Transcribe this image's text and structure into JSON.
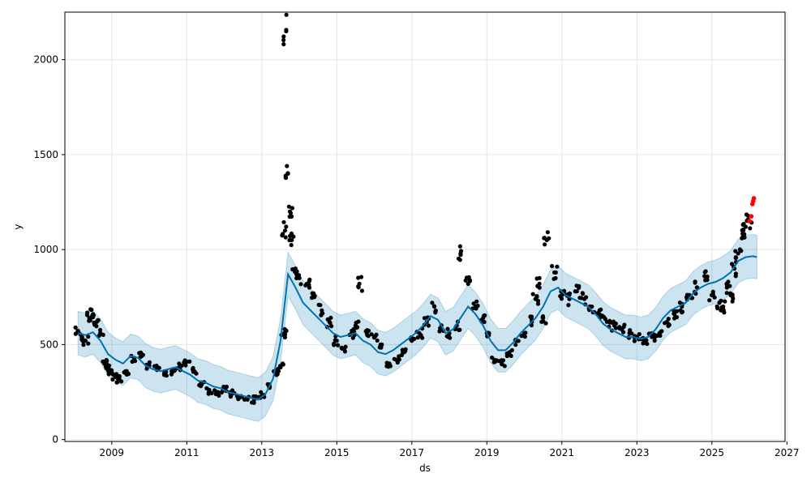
{
  "chart_data": {
    "type": "line",
    "xlabel": "ds",
    "ylabel": "y",
    "xlim": [
      2007.75,
      2026.95
    ],
    "ylim": [
      -10,
      2250
    ],
    "x_ticks": [
      2009,
      2011,
      2013,
      2015,
      2017,
      2019,
      2021,
      2023,
      2025,
      2027
    ],
    "y_ticks": [
      0,
      500,
      1000,
      1500,
      2000
    ],
    "grid": true,
    "colors": {
      "forecast": "#0072B2",
      "band": "#0072B2",
      "observed": "#000000",
      "recent": "#ff0000"
    },
    "series": [
      {
        "kind": "forecast",
        "x": [
          2008.1,
          2008.3,
          2008.5,
          2008.7,
          2008.9,
          2009.1,
          2009.3,
          2009.5,
          2009.7,
          2009.9,
          2010.1,
          2010.3,
          2010.5,
          2010.7,
          2010.9,
          2011.1,
          2011.3,
          2011.5,
          2011.7,
          2011.9,
          2012.1,
          2012.3,
          2012.5,
          2012.7,
          2012.9,
          2013.1,
          2013.3,
          2013.5,
          2013.7,
          2013.9,
          2014.1,
          2014.3,
          2014.5,
          2014.7,
          2014.9,
          2015.1,
          2015.3,
          2015.5,
          2015.7,
          2015.9,
          2016.1,
          2016.3,
          2016.5,
          2016.7,
          2016.9,
          2017.1,
          2017.3,
          2017.5,
          2017.7,
          2017.9,
          2018.1,
          2018.3,
          2018.5,
          2018.7,
          2018.9,
          2019.1,
          2019.3,
          2019.5,
          2019.7,
          2019.9,
          2020.1,
          2020.3,
          2020.5,
          2020.7,
          2020.9,
          2021.1,
          2021.3,
          2021.5,
          2021.7,
          2021.9,
          2022.1,
          2022.3,
          2022.5,
          2022.7,
          2022.9,
          2023.1,
          2023.3,
          2023.5,
          2023.7,
          2023.9,
          2024.1,
          2024.3,
          2024.5,
          2024.7,
          2024.9,
          2025.1,
          2025.3,
          2025.5,
          2025.7,
          2025.9,
          2026.1,
          2026.2
        ],
        "y": [
          560,
          550,
          565,
          520,
          450,
          420,
          400,
          440,
          430,
          390,
          370,
          360,
          370,
          380,
          360,
          340,
          310,
          300,
          280,
          270,
          250,
          240,
          230,
          220,
          210,
          240,
          320,
          520,
          870,
          800,
          720,
          680,
          640,
          600,
          560,
          540,
          550,
          560,
          520,
          500,
          460,
          450,
          470,
          500,
          530,
          560,
          600,
          650,
          630,
          560,
          580,
          640,
          700,
          660,
          600,
          520,
          470,
          470,
          510,
          560,
          600,
          640,
          700,
          780,
          800,
          760,
          740,
          720,
          700,
          660,
          610,
          580,
          560,
          540,
          540,
          530,
          540,
          580,
          640,
          680,
          700,
          720,
          770,
          800,
          820,
          830,
          850,
          880,
          940,
          960,
          965,
          960
        ]
      },
      {
        "kind": "observed",
        "x": [
          2008.1,
          2008.2,
          2008.3,
          2008.4,
          2008.5,
          2008.6,
          2008.7,
          2008.8,
          2008.9,
          2009.0,
          2009.1,
          2009.2,
          2009.4,
          2009.6,
          2009.8,
          2010.0,
          2010.2,
          2010.4,
          2010.6,
          2010.8,
          2011.0,
          2011.2,
          2011.4,
          2011.6,
          2011.8,
          2012.0,
          2012.2,
          2012.4,
          2012.6,
          2012.8,
          2013.0,
          2013.2,
          2013.4,
          2013.5,
          2013.6,
          2013.62,
          2013.65,
          2013.7,
          2013.75,
          2013.8,
          2013.9,
          2014.0,
          2014.2,
          2014.4,
          2014.6,
          2014.8,
          2015.0,
          2015.2,
          2015.4,
          2015.5,
          2015.6,
          2015.8,
          2016.0,
          2016.2,
          2016.4,
          2016.6,
          2016.8,
          2017.0,
          2017.2,
          2017.4,
          2017.6,
          2017.8,
          2018.0,
          2018.2,
          2018.3,
          2018.5,
          2018.7,
          2018.9,
          2019.0,
          2019.2,
          2019.4,
          2019.6,
          2019.8,
          2020.0,
          2020.2,
          2020.3,
          2020.4,
          2020.5,
          2020.6,
          2020.8,
          2021.0,
          2021.2,
          2021.4,
          2021.6,
          2021.8,
          2022.0,
          2022.2,
          2022.4,
          2022.6,
          2022.8,
          2023.0,
          2023.2,
          2023.4,
          2023.6,
          2023.8,
          2024.0,
          2024.2,
          2024.4,
          2024.6,
          2024.8,
          2025.0,
          2025.2,
          2025.3,
          2025.4,
          2025.5,
          2025.6,
          2025.7,
          2025.8,
          2025.9,
          2026.0
        ],
        "y": [
          570,
          540,
          520,
          640,
          660,
          620,
          560,
          400,
          380,
          350,
          330,
          320,
          360,
          430,
          440,
          390,
          370,
          340,
          360,
          380,
          410,
          360,
          300,
          260,
          250,
          260,
          240,
          220,
          215,
          210,
          230,
          290,
          360,
          380,
          560,
          1100,
          2150,
          1400,
          1200,
          1050,
          900,
          850,
          820,
          750,
          680,
          620,
          520,
          480,
          560,
          600,
          820,
          560,
          540,
          500,
          400,
          420,
          460,
          520,
          560,
          620,
          700,
          580,
          560,
          600,
          980,
          820,
          700,
          640,
          560,
          420,
          400,
          460,
          520,
          560,
          620,
          740,
          820,
          640,
          1050,
          880,
          760,
          740,
          780,
          740,
          700,
          660,
          620,
          600,
          580,
          560,
          540,
          520,
          540,
          560,
          620,
          660,
          700,
          760,
          800,
          860,
          760,
          720,
          700,
          800,
          760,
          900,
          980,
          1060,
          1120,
          1150
        ]
      },
      {
        "kind": "recent",
        "x": [
          2026.0,
          2026.05,
          2026.08,
          2026.1,
          2026.12
        ],
        "y": [
          1150,
          1175,
          1240,
          1255,
          1270
        ]
      }
    ]
  }
}
